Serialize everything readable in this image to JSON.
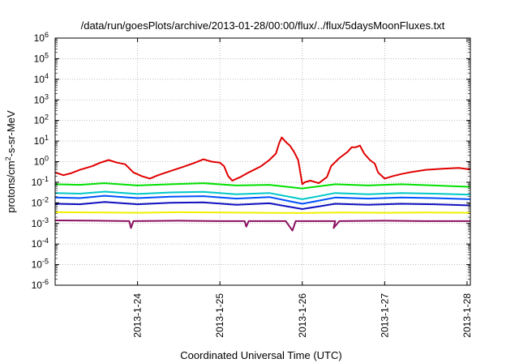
{
  "chart_data": {
    "type": "line",
    "title": "/data/run/goesPlots/archive/2013-01-28/00:00/flux/../flux/5daysMoonFluxes.txt",
    "xlabel": "Coordinated Universal Time (UTC)",
    "ylabel_parts": {
      "before": "protons/cm",
      "sup": "2",
      "after": "-s-sr-MeV"
    },
    "yscale": "log",
    "ylim": [
      1e-06,
      1000000.0
    ],
    "xlim": [
      0,
      5.04
    ],
    "grid": true,
    "y_ticks": [
      {
        "base": "10",
        "exp": "6"
      },
      {
        "base": "10",
        "exp": "5"
      },
      {
        "base": "10",
        "exp": "4"
      },
      {
        "base": "10",
        "exp": "3"
      },
      {
        "base": "10",
        "exp": "2"
      },
      {
        "base": "10",
        "exp": "1"
      },
      {
        "base": "10",
        "exp": "0"
      },
      {
        "base": "10",
        "exp": "-1"
      },
      {
        "base": "10",
        "exp": "-2"
      },
      {
        "base": "10",
        "exp": "-3"
      },
      {
        "base": "10",
        "exp": "-4"
      },
      {
        "base": "10",
        "exp": "-5"
      },
      {
        "base": "10",
        "exp": "-6"
      }
    ],
    "x_ticks": [
      "2013-1-24",
      "2013-1-25",
      "2013-1-26",
      "2013-1-27",
      "2013-1-28"
    ],
    "x_tick_values": [
      1,
      2,
      3,
      4,
      5
    ],
    "series": [
      {
        "color": "#e00000",
        "points": [
          [
            0,
            0.3
          ],
          [
            0.1,
            0.22
          ],
          [
            0.2,
            0.28
          ],
          [
            0.3,
            0.4
          ],
          [
            0.45,
            0.6
          ],
          [
            0.55,
            0.9
          ],
          [
            0.65,
            1.2
          ],
          [
            0.75,
            0.9
          ],
          [
            0.85,
            0.75
          ],
          [
            0.95,
            0.3
          ],
          [
            1.05,
            0.2
          ],
          [
            1.15,
            0.15
          ],
          [
            1.25,
            0.22
          ],
          [
            1.4,
            0.35
          ],
          [
            1.55,
            0.55
          ],
          [
            1.7,
            0.9
          ],
          [
            1.8,
            1.3
          ],
          [
            1.9,
            1.0
          ],
          [
            2.0,
            0.9
          ],
          [
            2.05,
            0.6
          ],
          [
            2.1,
            0.2
          ],
          [
            2.15,
            0.12
          ],
          [
            2.25,
            0.18
          ],
          [
            2.35,
            0.3
          ],
          [
            2.5,
            0.6
          ],
          [
            2.6,
            1.2
          ],
          [
            2.68,
            2.5
          ],
          [
            2.72,
            8
          ],
          [
            2.75,
            15
          ],
          [
            2.8,
            9
          ],
          [
            2.85,
            6
          ],
          [
            2.9,
            3
          ],
          [
            2.95,
            1.2
          ],
          [
            3.0,
            0.08
          ],
          [
            3.03,
            0.1
          ],
          [
            3.1,
            0.12
          ],
          [
            3.2,
            0.09
          ],
          [
            3.3,
            0.18
          ],
          [
            3.35,
            0.6
          ],
          [
            3.45,
            1.5
          ],
          [
            3.55,
            3
          ],
          [
            3.6,
            5
          ],
          [
            3.65,
            5
          ],
          [
            3.7,
            6
          ],
          [
            3.75,
            2.5
          ],
          [
            3.82,
            1.2
          ],
          [
            3.88,
            0.8
          ],
          [
            3.92,
            0.3
          ],
          [
            4.0,
            0.15
          ],
          [
            4.1,
            0.2
          ],
          [
            4.2,
            0.25
          ],
          [
            4.3,
            0.3
          ],
          [
            4.5,
            0.4
          ],
          [
            4.7,
            0.45
          ],
          [
            4.9,
            0.5
          ],
          [
            5.04,
            0.42
          ]
        ]
      },
      {
        "color": "#00e000",
        "points": [
          [
            0,
            0.08
          ],
          [
            0.3,
            0.075
          ],
          [
            0.6,
            0.09
          ],
          [
            1.0,
            0.07
          ],
          [
            1.4,
            0.08
          ],
          [
            1.8,
            0.09
          ],
          [
            2.2,
            0.07
          ],
          [
            2.6,
            0.075
          ],
          [
            3.0,
            0.05
          ],
          [
            3.4,
            0.08
          ],
          [
            3.8,
            0.07
          ],
          [
            4.2,
            0.08
          ],
          [
            4.6,
            0.07
          ],
          [
            5.04,
            0.06
          ]
        ]
      },
      {
        "color": "#00c8c8",
        "points": [
          [
            0,
            0.03
          ],
          [
            0.3,
            0.028
          ],
          [
            0.6,
            0.035
          ],
          [
            1.0,
            0.027
          ],
          [
            1.4,
            0.032
          ],
          [
            1.8,
            0.034
          ],
          [
            2.2,
            0.026
          ],
          [
            2.6,
            0.03
          ],
          [
            3.0,
            0.015
          ],
          [
            3.4,
            0.03
          ],
          [
            3.8,
            0.026
          ],
          [
            4.2,
            0.03
          ],
          [
            4.6,
            0.028
          ],
          [
            5.04,
            0.025
          ]
        ]
      },
      {
        "color": "#0050ff",
        "points": [
          [
            0,
            0.018
          ],
          [
            0.3,
            0.017
          ],
          [
            0.6,
            0.022
          ],
          [
            1.0,
            0.017
          ],
          [
            1.4,
            0.02
          ],
          [
            1.8,
            0.021
          ],
          [
            2.2,
            0.016
          ],
          [
            2.6,
            0.019
          ],
          [
            3.0,
            0.009
          ],
          [
            3.4,
            0.018
          ],
          [
            3.8,
            0.016
          ],
          [
            4.2,
            0.018
          ],
          [
            4.6,
            0.017
          ],
          [
            5.04,
            0.015
          ]
        ]
      },
      {
        "color": "#1010c0",
        "points": [
          [
            0,
            0.009
          ],
          [
            0.3,
            0.0085
          ],
          [
            0.6,
            0.011
          ],
          [
            1.0,
            0.0085
          ],
          [
            1.4,
            0.01
          ],
          [
            1.8,
            0.0105
          ],
          [
            2.2,
            0.008
          ],
          [
            2.6,
            0.0095
          ],
          [
            3.0,
            0.005
          ],
          [
            3.4,
            0.009
          ],
          [
            3.8,
            0.008
          ],
          [
            4.2,
            0.009
          ],
          [
            4.6,
            0.0085
          ],
          [
            5.04,
            0.0075
          ]
        ]
      },
      {
        "color": "#f0f000",
        "points": [
          [
            0,
            0.0035
          ],
          [
            0.5,
            0.0034
          ],
          [
            1.0,
            0.0033
          ],
          [
            1.5,
            0.0035
          ],
          [
            2.0,
            0.0034
          ],
          [
            2.5,
            0.0033
          ],
          [
            3.0,
            0.0032
          ],
          [
            3.5,
            0.0034
          ],
          [
            4.0,
            0.0033
          ],
          [
            4.5,
            0.0034
          ],
          [
            5.04,
            0.0033
          ]
        ]
      },
      {
        "color": "#8a1060",
        "points": [
          [
            0,
            0.0014
          ],
          [
            0.5,
            0.00135
          ],
          [
            0.9,
            0.0013
          ],
          [
            0.92,
            0.0006
          ],
          [
            0.95,
            0.0013
          ],
          [
            1.5,
            0.00135
          ],
          [
            2.0,
            0.0013
          ],
          [
            2.3,
            0.0013
          ],
          [
            2.32,
            0.0007
          ],
          [
            2.35,
            0.0013
          ],
          [
            2.8,
            0.0013
          ],
          [
            2.88,
            0.00045
          ],
          [
            2.92,
            0.0013
          ],
          [
            3.4,
            0.0013
          ],
          [
            3.38,
            0.0006
          ],
          [
            3.45,
            0.0013
          ],
          [
            4.0,
            0.00135
          ],
          [
            4.5,
            0.0013
          ],
          [
            5.04,
            0.0013
          ]
        ]
      }
    ]
  }
}
